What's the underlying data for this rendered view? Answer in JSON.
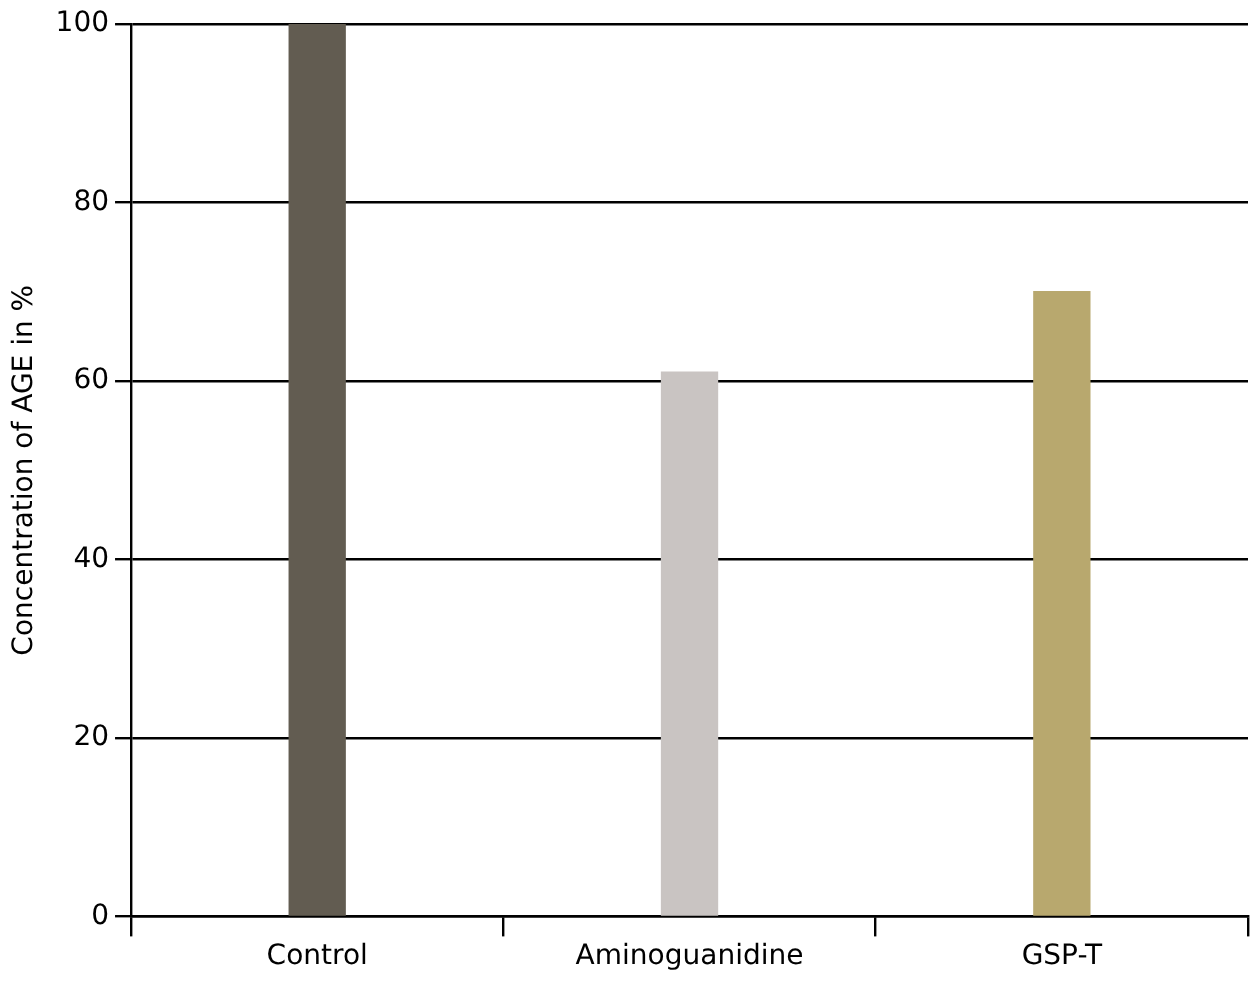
{
  "chart_data": {
    "type": "bar",
    "ylabel": "Concentration of AGE in %",
    "categories": [
      "Control",
      "Aminoguanidine",
      "GSP-T"
    ],
    "values": [
      100,
      61,
      70
    ],
    "colors": [
      "#625c51",
      "#c9c4c2",
      "#b8a86e"
    ],
    "ylim": [
      0,
      100
    ],
    "yticks": [
      0,
      20,
      40,
      60,
      80,
      100
    ],
    "grid": "y"
  }
}
